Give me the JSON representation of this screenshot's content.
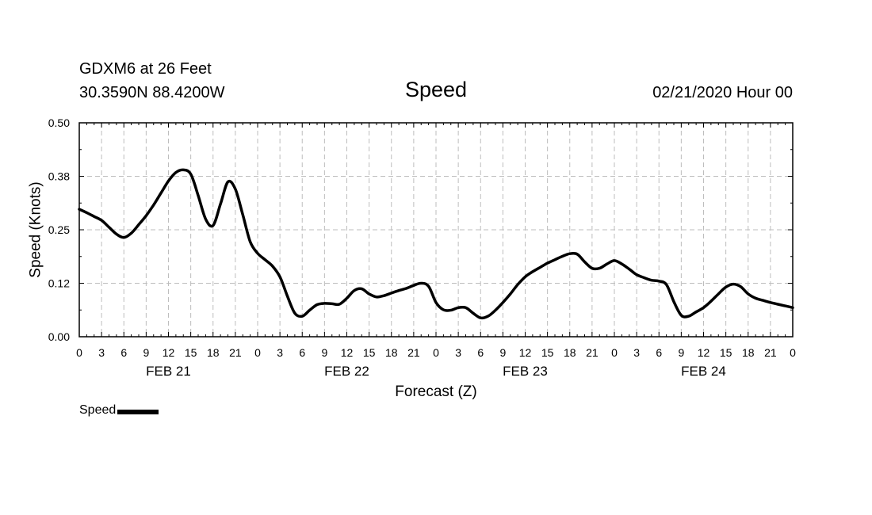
{
  "header": {
    "station": "GDXM6 at 26 Feet",
    "coords": "30.3590N 88.4200W",
    "title": "Speed",
    "datetime": "02/21/2020 Hour 00"
  },
  "chart_data": {
    "type": "line",
    "title": "Speed",
    "xlabel": "Forecast (Z)",
    "ylabel": "Speed (Knots)",
    "xlim": [
      0,
      96
    ],
    "ylim": [
      0,
      0.5
    ],
    "grid": true,
    "x_tick_labels": [
      "0",
      "3",
      "6",
      "9",
      "12",
      "15",
      "18",
      "21",
      "0",
      "3",
      "6",
      "9",
      "12",
      "15",
      "18",
      "21",
      "0",
      "3",
      "6",
      "9",
      "12",
      "15",
      "18",
      "21",
      "0",
      "3",
      "6",
      "9",
      "12",
      "15",
      "18",
      "21",
      "0"
    ],
    "y_tick_labels": [
      "0.00",
      "0.12",
      "0.25",
      "0.38",
      "0.50"
    ],
    "y_ticks": [
      0,
      0.125,
      0.25,
      0.375,
      0.5
    ],
    "day_labels": [
      {
        "label": "FEB 21",
        "x": 12
      },
      {
        "label": "FEB 22",
        "x": 36
      },
      {
        "label": "FEB 23",
        "x": 60
      },
      {
        "label": "FEB 24",
        "x": 84
      }
    ],
    "legend": {
      "placement": "bottom-left",
      "label": "Speed"
    },
    "series": [
      {
        "name": "Speed",
        "color": "#000000",
        "x": [
          0,
          1,
          2,
          3,
          4,
          5,
          6,
          7,
          8,
          9,
          10,
          11,
          12,
          13,
          14,
          15,
          16,
          17,
          18,
          19,
          20,
          21,
          22,
          23,
          24,
          25,
          26,
          27,
          28,
          29,
          30,
          31,
          32,
          33,
          34,
          35,
          36,
          37,
          38,
          39,
          40,
          41,
          42,
          43,
          44,
          45,
          46,
          47,
          48,
          49,
          50,
          51,
          52,
          53,
          54,
          55,
          56,
          57,
          58,
          59,
          60,
          61,
          62,
          63,
          64,
          65,
          66,
          67,
          68,
          69,
          70,
          71,
          72,
          73,
          74,
          75,
          76,
          77,
          78,
          79,
          80,
          81,
          82,
          83,
          84,
          85,
          86,
          87,
          88,
          89,
          90,
          91,
          92,
          93,
          94,
          95,
          96
        ],
        "values": [
          0.298,
          0.29,
          0.281,
          0.272,
          0.256,
          0.24,
          0.232,
          0.242,
          0.262,
          0.283,
          0.308,
          0.336,
          0.364,
          0.384,
          0.39,
          0.38,
          0.33,
          0.275,
          0.26,
          0.31,
          0.362,
          0.345,
          0.285,
          0.222,
          0.195,
          0.18,
          0.165,
          0.14,
          0.095,
          0.055,
          0.048,
          0.062,
          0.075,
          0.078,
          0.077,
          0.076,
          0.09,
          0.108,
          0.112,
          0.1,
          0.093,
          0.096,
          0.102,
          0.108,
          0.113,
          0.12,
          0.125,
          0.118,
          0.08,
          0.063,
          0.062,
          0.068,
          0.068,
          0.055,
          0.044,
          0.048,
          0.062,
          0.08,
          0.1,
          0.122,
          0.14,
          0.152,
          0.162,
          0.172,
          0.18,
          0.188,
          0.194,
          0.193,
          0.175,
          0.16,
          0.16,
          0.17,
          0.178,
          0.17,
          0.158,
          0.145,
          0.138,
          0.132,
          0.13,
          0.122,
          0.082,
          0.05,
          0.048,
          0.058,
          0.068,
          0.083,
          0.1,
          0.116,
          0.123,
          0.117,
          0.1,
          0.09,
          0.085,
          0.08,
          0.076,
          0.072,
          0.068
        ]
      }
    ]
  }
}
